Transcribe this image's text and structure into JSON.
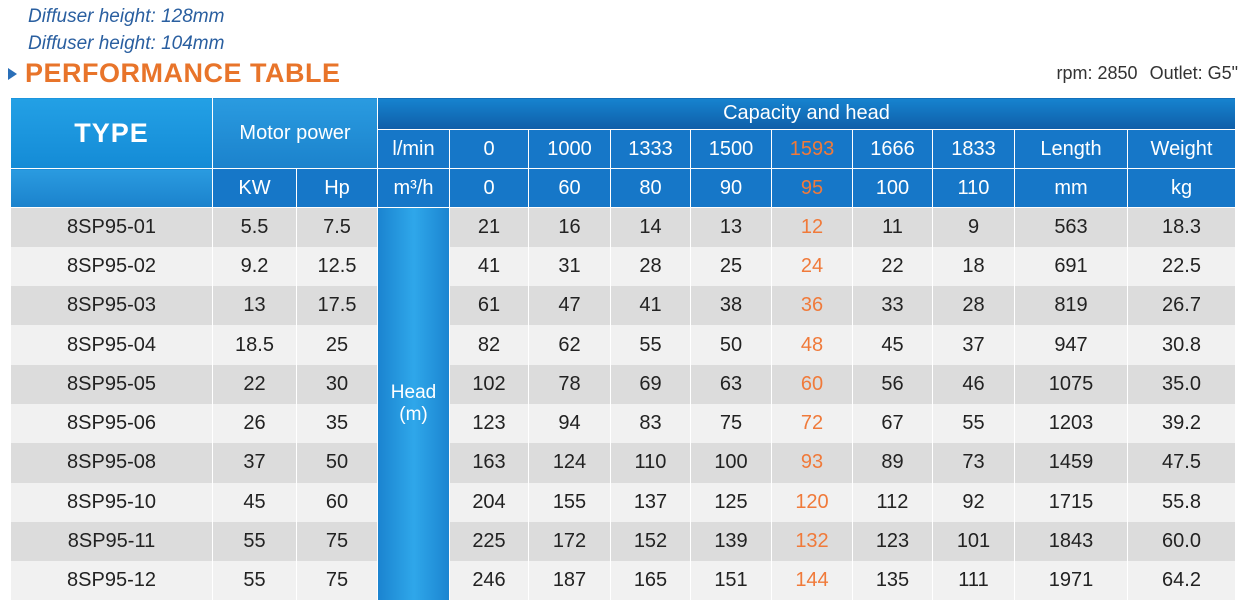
{
  "notes": [
    "Diffuser height: 128mm",
    "Diffuser height: 104mm"
  ],
  "section_title": "PERFORMANCE TABLE",
  "rpm_label": "rpm: 2850",
  "outlet_label": "Outlet: G5\"",
  "header": {
    "type": "TYPE",
    "motor_power": "Motor power",
    "capacity_and_head": "Capacity and head",
    "lmin_label": "l/min",
    "m3h_label": "m³/h",
    "kw": "KW",
    "hp": "Hp",
    "length": "Length",
    "weight": "Weight",
    "mm": "mm",
    "kg": "kg",
    "flows_lmin": [
      "0",
      "1000",
      "1333",
      "1500",
      "1593",
      "1666",
      "1833"
    ],
    "flows_m3h": [
      "0",
      "60",
      "80",
      "90",
      "95",
      "100",
      "110"
    ],
    "highlight_index": 4,
    "head_label_1": "Head",
    "head_label_2": "(m)"
  },
  "colors": {
    "accent": "#f07a3a",
    "header_blue": "#1677c8",
    "row_dark": "#dcdcdc",
    "row_light": "#f1f1f1"
  },
  "rows": [
    {
      "type": "8SP95-01",
      "kw": "5.5",
      "hp": "7.5",
      "heads": [
        "21",
        "16",
        "14",
        "13",
        "12",
        "11",
        "9"
      ],
      "length": "563",
      "weight": "18.3"
    },
    {
      "type": "8SP95-02",
      "kw": "9.2",
      "hp": "12.5",
      "heads": [
        "41",
        "31",
        "28",
        "25",
        "24",
        "22",
        "18"
      ],
      "length": "691",
      "weight": "22.5"
    },
    {
      "type": "8SP95-03",
      "kw": "13",
      "hp": "17.5",
      "heads": [
        "61",
        "47",
        "41",
        "38",
        "36",
        "33",
        "28"
      ],
      "length": "819",
      "weight": "26.7"
    },
    {
      "type": "8SP95-04",
      "kw": "18.5",
      "hp": "25",
      "heads": [
        "82",
        "62",
        "55",
        "50",
        "48",
        "45",
        "37"
      ],
      "length": "947",
      "weight": "30.8"
    },
    {
      "type": "8SP95-05",
      "kw": "22",
      "hp": "30",
      "heads": [
        "102",
        "78",
        "69",
        "63",
        "60",
        "56",
        "46"
      ],
      "length": "1075",
      "weight": "35.0"
    },
    {
      "type": "8SP95-06",
      "kw": "26",
      "hp": "35",
      "heads": [
        "123",
        "94",
        "83",
        "75",
        "72",
        "67",
        "55"
      ],
      "length": "1203",
      "weight": "39.2"
    },
    {
      "type": "8SP95-08",
      "kw": "37",
      "hp": "50",
      "heads": [
        "163",
        "124",
        "110",
        "100",
        "93",
        "89",
        "73"
      ],
      "length": "1459",
      "weight": "47.5"
    },
    {
      "type": "8SP95-10",
      "kw": "45",
      "hp": "60",
      "heads": [
        "204",
        "155",
        "137",
        "125",
        "120",
        "112",
        "92"
      ],
      "length": "1715",
      "weight": "55.8"
    },
    {
      "type": "8SP95-11",
      "kw": "55",
      "hp": "75",
      "heads": [
        "225",
        "172",
        "152",
        "139",
        "132",
        "123",
        "101"
      ],
      "length": "1843",
      "weight": "60.0"
    },
    {
      "type": "8SP95-12",
      "kw": "55",
      "hp": "75",
      "heads": [
        "246",
        "187",
        "165",
        "151",
        "144",
        "135",
        "111"
      ],
      "length": "1971",
      "weight": "64.2"
    }
  ]
}
